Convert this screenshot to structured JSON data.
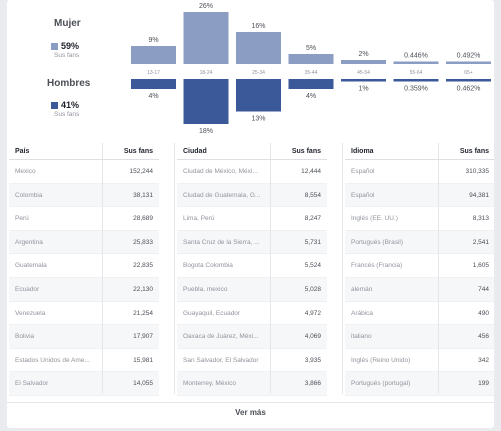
{
  "gender": {
    "women": {
      "title": "Mujer",
      "percent": "59%",
      "sub": "Sus fans",
      "color": "#8b9dc3"
    },
    "men": {
      "title": "Hombres",
      "percent": "41%",
      "sub": "Sus fans",
      "color": "#3b5998"
    }
  },
  "chart_data": {
    "type": "bar",
    "categories": [
      "13-17",
      "18-24",
      "25-34",
      "35-44",
      "45-54",
      "55-64",
      "65+"
    ],
    "series": [
      {
        "name": "Mujer",
        "values": [
          9,
          26,
          16,
          5,
          2,
          0.446,
          0.492
        ],
        "labels": [
          "9%",
          "26%",
          "16%",
          "5%",
          "2%",
          "0.446%",
          "0.492%"
        ],
        "color": "#8b9dc3"
      },
      {
        "name": "Hombres",
        "values": [
          4,
          18,
          13,
          4,
          1,
          0.359,
          0.462
        ],
        "labels": [
          "4%",
          "18%",
          "13%",
          "4%",
          "1%",
          "0.359%",
          "0.462%"
        ],
        "color": "#3b5998"
      }
    ]
  },
  "tables": [
    {
      "header": "País",
      "value_header": "Sus fans",
      "rows": [
        {
          "name": "Mexico",
          "value": "152,244"
        },
        {
          "name": "Colombia",
          "value": "38,131"
        },
        {
          "name": "Perú",
          "value": "28,689"
        },
        {
          "name": "Argentina",
          "value": "25,833"
        },
        {
          "name": "Guatemala",
          "value": "22,835"
        },
        {
          "name": "Ecuador",
          "value": "22,130"
        },
        {
          "name": "Venezuela",
          "value": "21,254"
        },
        {
          "name": "Bolivia",
          "value": "17,907"
        },
        {
          "name": "Estados Unidos de Ame...",
          "value": "15,981"
        },
        {
          "name": "El Salvador",
          "value": "14,055"
        }
      ]
    },
    {
      "header": "Ciudad",
      "value_header": "Sus fans",
      "rows": [
        {
          "name": "Ciudad de México, Méxi...",
          "value": "12,444"
        },
        {
          "name": "Ciudad de Guatemala, G...",
          "value": "8,554"
        },
        {
          "name": "Lima, Perú",
          "value": "8,247"
        },
        {
          "name": "Santa Cruz de la Sierra, ...",
          "value": "5,731"
        },
        {
          "name": "Bogota Colombia",
          "value": "5,524"
        },
        {
          "name": "Puebla, mexico",
          "value": "5,028"
        },
        {
          "name": "Guayaquil, Ecuador",
          "value": "4,972"
        },
        {
          "name": "Oaxaca de Juárez, Méxi...",
          "value": "4,069"
        },
        {
          "name": "San Salvador, El Salvador",
          "value": "3,935"
        },
        {
          "name": "Monterrey, México",
          "value": "3,866"
        }
      ]
    },
    {
      "header": "Idioma",
      "value_header": "Sus fans",
      "rows": [
        {
          "name": "Español",
          "value": "310,335"
        },
        {
          "name": "Español",
          "value": "94,381"
        },
        {
          "name": "Inglés (EE. UU.)",
          "value": "8,313"
        },
        {
          "name": "Portugués (Brasil)",
          "value": "2,541"
        },
        {
          "name": "Francés (Francia)",
          "value": "1,605"
        },
        {
          "name": "alemán",
          "value": "744"
        },
        {
          "name": "Arábica",
          "value": "490"
        },
        {
          "name": "italiano",
          "value": "456"
        },
        {
          "name": "Inglés (Reino Unido)",
          "value": "342"
        },
        {
          "name": "Portugués (portugal)",
          "value": "199"
        }
      ]
    }
  ],
  "see_more": "Ver más"
}
